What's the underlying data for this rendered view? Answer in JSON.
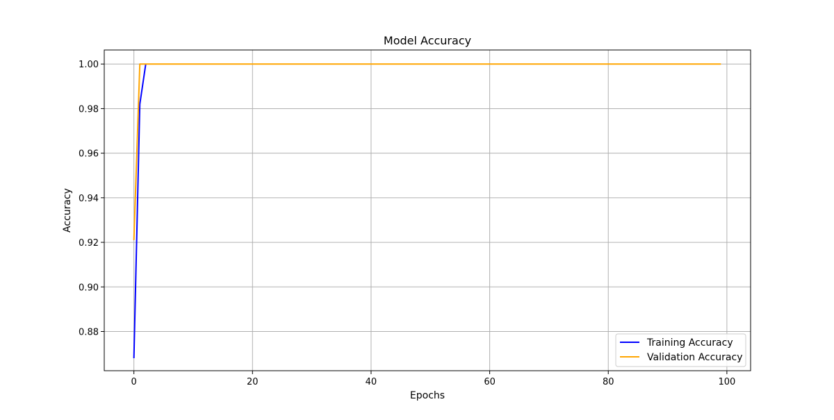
{
  "chart_data": {
    "type": "line",
    "title": "Model Accuracy",
    "xlabel": "Epochs",
    "ylabel": "Accuracy",
    "xlim": [
      -5,
      104
    ],
    "ylim": [
      0.8624,
      1.0063
    ],
    "xticks": [
      0,
      20,
      40,
      60,
      80,
      100
    ],
    "yticks": [
      0.88,
      0.9,
      0.92,
      0.94,
      0.96,
      0.98,
      1.0
    ],
    "ytick_labels": [
      "0.88",
      "0.90",
      "0.92",
      "0.94",
      "0.96",
      "0.98",
      "1.00"
    ],
    "grid": true,
    "legend_position": "lower-right",
    "series": [
      {
        "name": "Training Accuracy",
        "color": "#0000ff",
        "x": [
          0,
          1,
          2
        ],
        "y": [
          0.868,
          0.982,
          1.0
        ]
      },
      {
        "name": "Validation Accuracy",
        "color": "#ffa500",
        "x": [
          0,
          1,
          99
        ],
        "y": [
          0.921,
          1.0,
          1.0
        ]
      }
    ]
  }
}
